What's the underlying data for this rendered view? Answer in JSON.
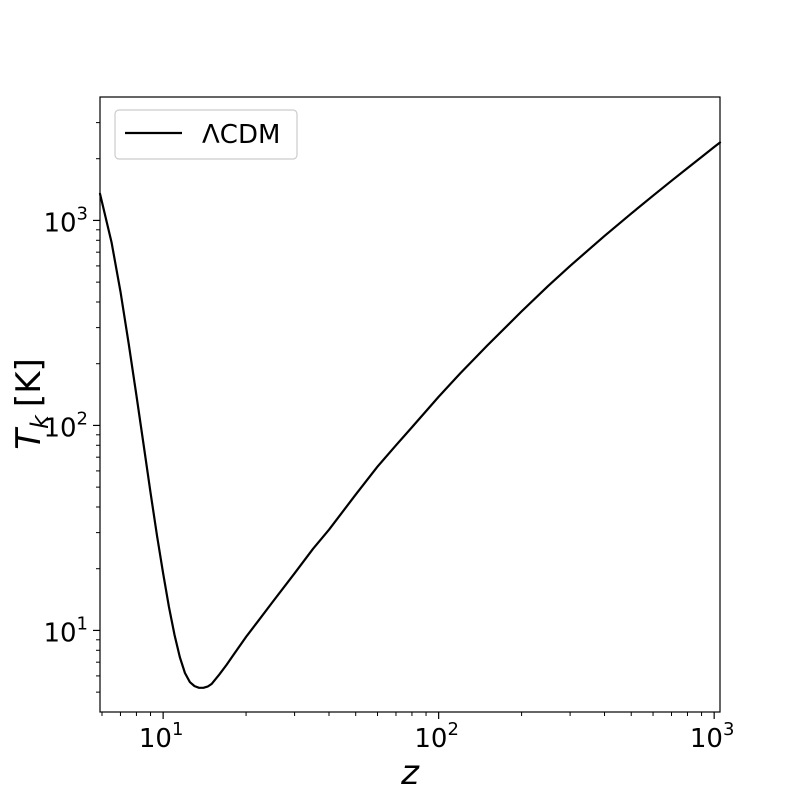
{
  "chart_data": {
    "type": "line",
    "title": "",
    "xlabel": "z",
    "ylabel_main": "T",
    "ylabel_sub": "k",
    "ylabel_unit": "[K]",
    "xscale": "log",
    "yscale": "log",
    "xlim": [
      5.9,
      1050
    ],
    "ylim": [
      4.0,
      4000
    ],
    "grid": false,
    "legend_position": "upper-left",
    "x_ticks": [
      {
        "value": 10,
        "base": "10",
        "exp": "1"
      },
      {
        "value": 100,
        "base": "10",
        "exp": "2"
      },
      {
        "value": 1000,
        "base": "10",
        "exp": "3"
      }
    ],
    "y_ticks": [
      {
        "value": 10,
        "base": "10",
        "exp": "1"
      },
      {
        "value": 100,
        "base": "10",
        "exp": "2"
      },
      {
        "value": 1000,
        "base": "10",
        "exp": "3"
      }
    ],
    "series": [
      {
        "name": "ΛCDM",
        "color": "#000000",
        "x": [
          5.9,
          6.5,
          7,
          7.5,
          8,
          8.5,
          9,
          9.5,
          10,
          10.5,
          11,
          11.5,
          12,
          12.5,
          13,
          13.5,
          14,
          14.5,
          15,
          16,
          17,
          18,
          20,
          22,
          25,
          30,
          35,
          40,
          50,
          60,
          70,
          80,
          100,
          120,
          150,
          200,
          250,
          300,
          400,
          500,
          600,
          700,
          800,
          900,
          1000,
          1050
        ],
        "y": [
          1350,
          780,
          450,
          250,
          140,
          80,
          47,
          29,
          19,
          13,
          9.5,
          7.4,
          6.2,
          5.6,
          5.35,
          5.25,
          5.25,
          5.32,
          5.48,
          6.1,
          6.8,
          7.6,
          9.3,
          11.0,
          13.8,
          19.0,
          25.0,
          31.0,
          46.0,
          63.0,
          80.0,
          98.0,
          138,
          180,
          245,
          360,
          480,
          600,
          840,
          1080,
          1320,
          1560,
          1800,
          2040,
          2280,
          2400
        ]
      }
    ]
  }
}
